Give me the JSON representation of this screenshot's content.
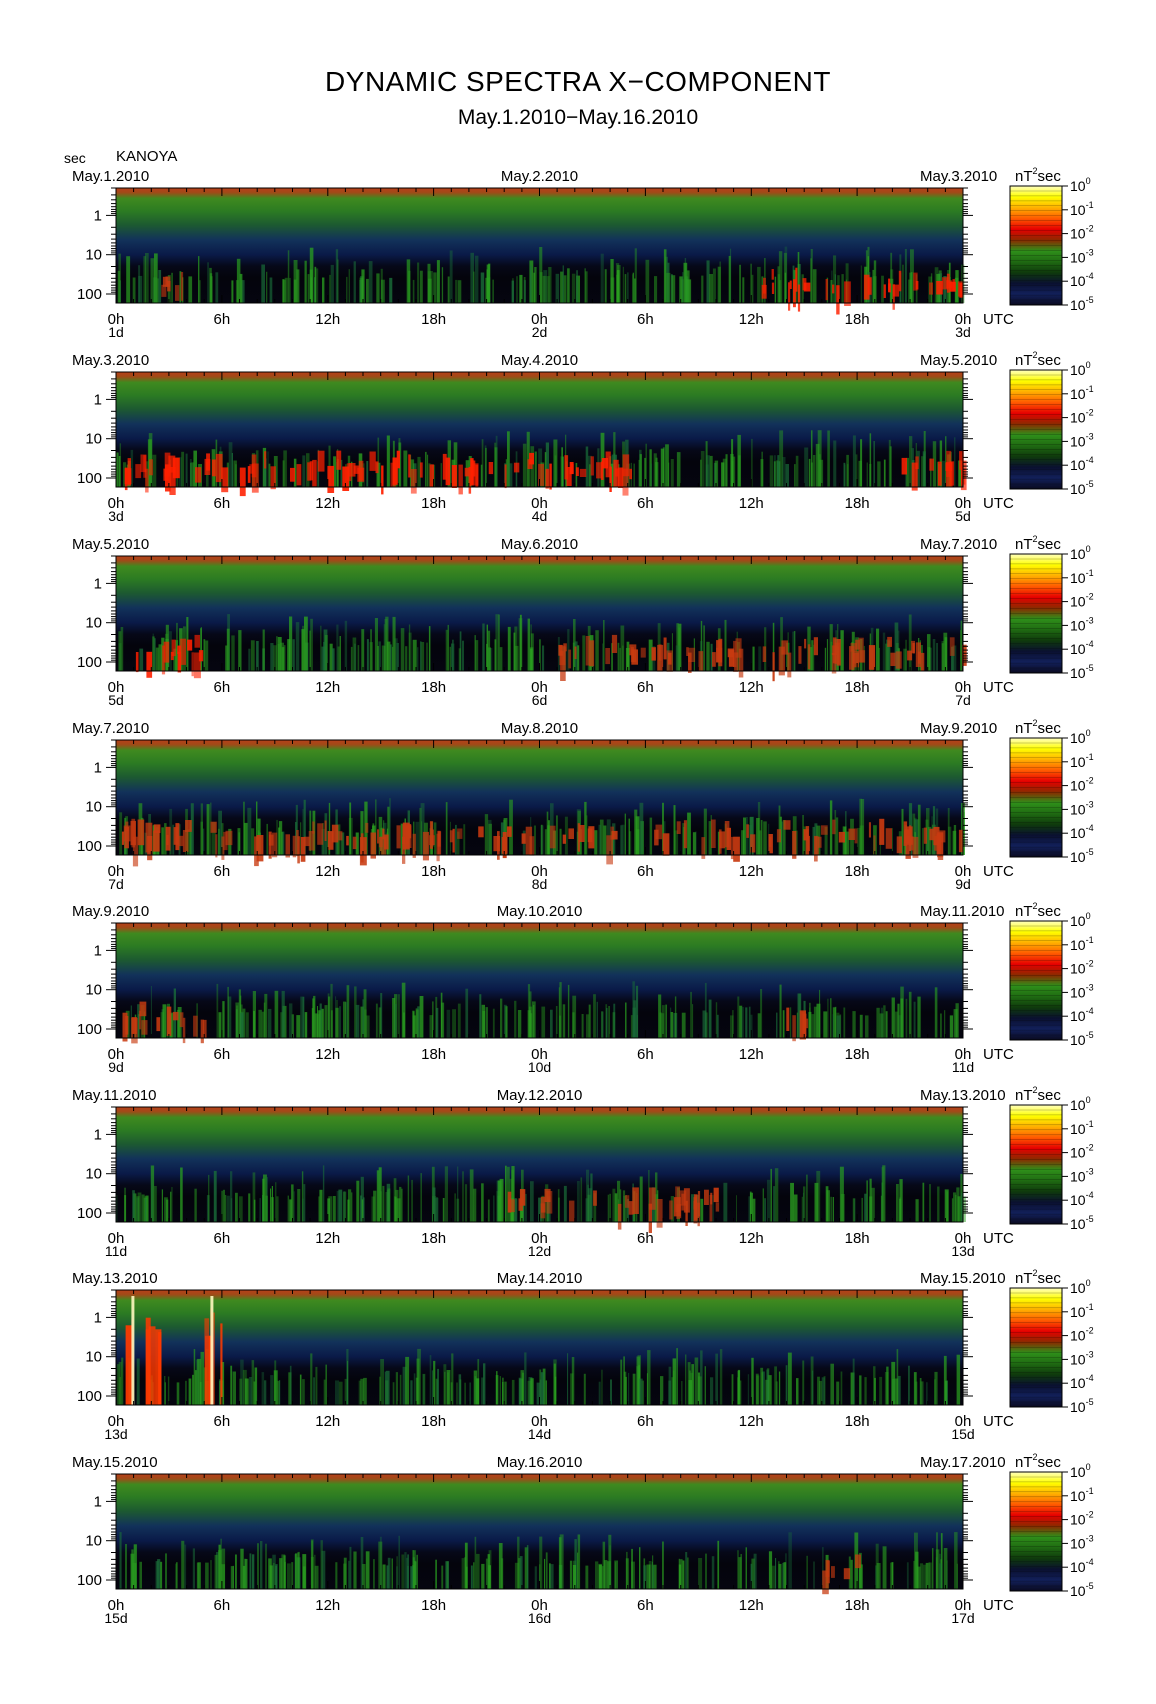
{
  "title": "DYNAMIC SPECTRA X−COMPONENT",
  "subtitle": "May.1.2010−May.16.2010",
  "y_unit_label": "sec",
  "station": "KANOYA",
  "time_unit": "UTC",
  "colorbar_unit": {
    "base": "nT",
    "exp": "2",
    "suffix": "sec"
  },
  "colorbar_ticks": [
    {
      "base": "10",
      "exp": "0"
    },
    {
      "base": "10",
      "exp": "-1"
    },
    {
      "base": "10",
      "exp": "-2"
    },
    {
      "base": "10",
      "exp": "-3"
    },
    {
      "base": "10",
      "exp": "-4"
    },
    {
      "base": "10",
      "exp": "-5"
    }
  ],
  "colors": {
    "colorbar": [
      "#ffffc0",
      "#ffff00",
      "#ffb000",
      "#ff5a00",
      "#e60000",
      "#8b2a00",
      "#2f8f1a",
      "#1f6a12",
      "#0f3a0c",
      "#0a1030",
      "#12205a",
      "#0a0a20"
    ],
    "spectrum_high": "#ff2000",
    "spectrum_mid": "#2aa020",
    "spectrum_low": "#0a1a50",
    "spectrum_dark": "#050510"
  },
  "chart_data": {
    "type": "heatmap",
    "y_axis": {
      "label": "sec",
      "ticks": [
        "1",
        "10",
        "100"
      ],
      "scale": "log",
      "range": [
        0.2,
        170
      ]
    },
    "x_axis": {
      "label": "UTC",
      "ticks": [
        "0h",
        "6h",
        "12h",
        "18h",
        "0h",
        "6h",
        "12h",
        "18h",
        "0h"
      ]
    },
    "colorbar": {
      "unit": "nT²sec",
      "range": [
        1e-05,
        1
      ],
      "scale": "log"
    },
    "panels": [
      {
        "date_left": "May.1.2010",
        "date_mid": "May.2.2010",
        "date_right": "May.3.2010",
        "day_labels": [
          "1d",
          "2d",
          "3d"
        ],
        "events": [
          {
            "start_h": 36.5,
            "end_h": 48,
            "intensity": "high"
          },
          {
            "start_h": 2,
            "end_h": 4,
            "intensity": "medium"
          }
        ]
      },
      {
        "date_left": "May.3.2010",
        "date_mid": "May.4.2010",
        "date_right": "May.5.2010",
        "day_labels": [
          "3d",
          "4d",
          "5d"
        ],
        "events": [
          {
            "start_h": 0,
            "end_h": 30,
            "intensity": "high"
          },
          {
            "start_h": 44,
            "end_h": 48,
            "intensity": "high"
          }
        ]
      },
      {
        "date_left": "May.5.2010",
        "date_mid": "May.6.2010",
        "date_right": "May.7.2010",
        "day_labels": [
          "5d",
          "6d",
          "7d"
        ],
        "events": [
          {
            "start_h": 0,
            "end_h": 5,
            "intensity": "high"
          },
          {
            "start_h": 25,
            "end_h": 48,
            "intensity": "medium"
          }
        ]
      },
      {
        "date_left": "May.7.2010",
        "date_mid": "May.8.2010",
        "date_right": "May.9.2010",
        "day_labels": [
          "7d",
          "8d",
          "9d"
        ],
        "events": [
          {
            "start_h": 0,
            "end_h": 48,
            "intensity": "medium"
          }
        ]
      },
      {
        "date_left": "May.9.2010",
        "date_mid": "May.10.2010",
        "date_right": "May.11.2010",
        "day_labels": [
          "9d",
          "10d",
          "11d"
        ],
        "events": [
          {
            "start_h": 0,
            "end_h": 5,
            "intensity": "medium"
          },
          {
            "start_h": 37,
            "end_h": 39,
            "intensity": "medium"
          }
        ]
      },
      {
        "date_left": "May.11.2010",
        "date_mid": "May.12.2010",
        "date_right": "May.13.2010",
        "day_labels": [
          "11d",
          "12d",
          "13d"
        ],
        "events": [
          {
            "start_h": 22,
            "end_h": 34,
            "intensity": "medium"
          }
        ]
      },
      {
        "date_left": "May.13.2010",
        "date_mid": "May.14.2010",
        "date_right": "May.15.2010",
        "day_labels": [
          "13d",
          "14d",
          "15d"
        ],
        "events": [
          {
            "start_h": 0,
            "end_h": 2.5,
            "intensity": "extreme"
          },
          {
            "start_h": 5,
            "end_h": 6,
            "intensity": "extreme"
          }
        ]
      },
      {
        "date_left": "May.15.2010",
        "date_mid": "May.16.2010",
        "date_right": "May.17.2010",
        "day_labels": [
          "15d",
          "16d",
          "17d"
        ],
        "events": [
          {
            "start_h": 40,
            "end_h": 42,
            "intensity": "medium"
          }
        ]
      }
    ]
  }
}
